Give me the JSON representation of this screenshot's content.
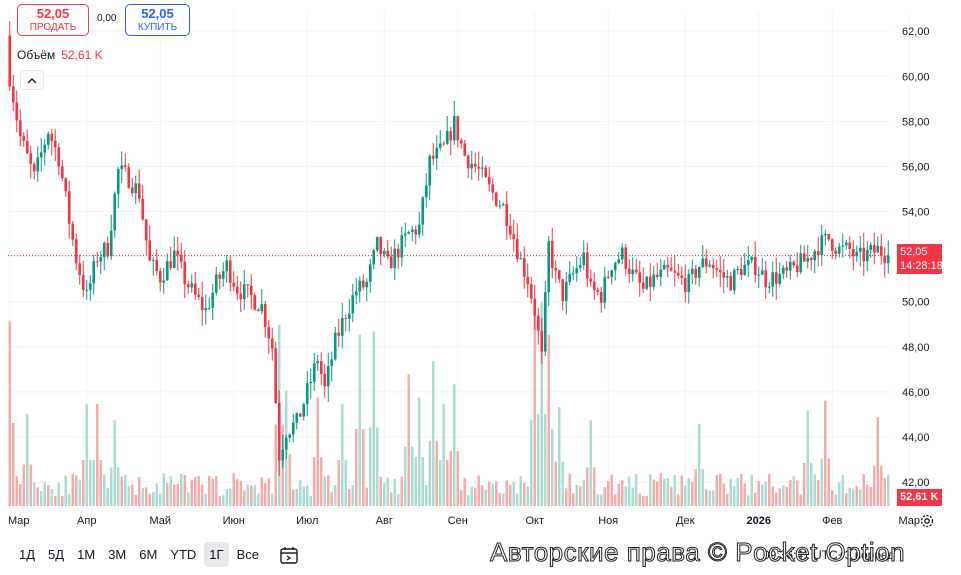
{
  "trade": {
    "sell_price": "52,05",
    "sell_label": "ПРОДАТЬ",
    "spread": "0,00",
    "buy_price": "52,05",
    "buy_label": "КУПИТЬ"
  },
  "volume_legend": {
    "label": "Объём",
    "value": "52,61 K"
  },
  "price_tag": {
    "price": "52,05",
    "countdown": "14:28:18"
  },
  "volume_tag": "52,61 K",
  "timeframes": [
    "1Д",
    "5Д",
    "1М",
    "3М",
    "6М",
    "YTD",
    "1Г",
    "Все"
  ],
  "active_timeframe": "1Г",
  "clock_text": "09:36:41 UTC+3",
  "footer_right": "ворред",
  "watermark": "Авторские права © Pocket Option",
  "colors": {
    "up": "#089981",
    "down": "#f23645",
    "up_volume": "#a8dcd1",
    "down_volume": "#f7a9a8"
  },
  "icons": [
    "chevron-up-icon",
    "date-range-icon",
    "settings-icon"
  ],
  "chart_data": {
    "type": "candlestick",
    "y_ticks": [
      "62,00",
      "60,00",
      "58,00",
      "56,00",
      "54,00",
      "52,00",
      "50,00",
      "48,00",
      "46,00",
      "44,00",
      "42,00"
    ],
    "y_tick_values": [
      62,
      60,
      58,
      56,
      54,
      52,
      50,
      48,
      46,
      44,
      42
    ],
    "ylim": [
      40.85,
      62.85
    ],
    "x_ticks": [
      "Мар",
      "Апр",
      "Май",
      "Июн",
      "Июл",
      "Авг",
      "Сен",
      "Окт",
      "Ноя",
      "Дек",
      "2026",
      "Фев",
      "Мар"
    ],
    "x_tick_positions": [
      0,
      22,
      43,
      64,
      85,
      107,
      128,
      150,
      171,
      193,
      214,
      235,
      257
    ],
    "last_price": 52.05,
    "price_anchors": [
      [
        0,
        60.0
      ],
      [
        3,
        57.3
      ],
      [
        7,
        55.5
      ],
      [
        11,
        57.6
      ],
      [
        14,
        56.4
      ],
      [
        17,
        53.6
      ],
      [
        19,
        51.9
      ],
      [
        22,
        50.2
      ],
      [
        25,
        52.0
      ],
      [
        28,
        52.4
      ],
      [
        31,
        55.8
      ],
      [
        34,
        55.5
      ],
      [
        37,
        54.8
      ],
      [
        40,
        51.7
      ],
      [
        43,
        51.1
      ],
      [
        47,
        52.1
      ],
      [
        50,
        51.0
      ],
      [
        53,
        50.2
      ],
      [
        56,
        49.6
      ],
      [
        59,
        50.8
      ],
      [
        62,
        51.6
      ],
      [
        65,
        50.6
      ],
      [
        69,
        50.2
      ],
      [
        72,
        49.8
      ],
      [
        75,
        48.0
      ],
      [
        77,
        43.2
      ],
      [
        79,
        44.3
      ],
      [
        82,
        44.6
      ],
      [
        85,
        46.0
      ],
      [
        88,
        47.5
      ],
      [
        90,
        46.1
      ],
      [
        93,
        48.2
      ],
      [
        96,
        49.5
      ],
      [
        99,
        50.5
      ],
      [
        102,
        50.8
      ],
      [
        105,
        52.5
      ],
      [
        108,
        51.6
      ],
      [
        111,
        52.3
      ],
      [
        114,
        53.0
      ],
      [
        117,
        53.3
      ],
      [
        120,
        56.2
      ],
      [
        124,
        56.8
      ],
      [
        127,
        57.9
      ],
      [
        130,
        56.5
      ],
      [
        134,
        55.8
      ],
      [
        137,
        55.0
      ],
      [
        141,
        54.2
      ],
      [
        143,
        53.4
      ],
      [
        146,
        51.8
      ],
      [
        148,
        51.0
      ],
      [
        150,
        49.6
      ],
      [
        152,
        47.5
      ],
      [
        154,
        52.5
      ],
      [
        156,
        51.1
      ],
      [
        158,
        50.3
      ],
      [
        161,
        51.2
      ],
      [
        164,
        52.0
      ],
      [
        166,
        50.5
      ],
      [
        169,
        50.3
      ],
      [
        172,
        51.7
      ],
      [
        175,
        52.1
      ],
      [
        178,
        51.2
      ],
      [
        181,
        50.5
      ],
      [
        184,
        51.0
      ],
      [
        188,
        51.3
      ],
      [
        191,
        51.0
      ],
      [
        194,
        50.8
      ],
      [
        197,
        51.6
      ],
      [
        200,
        51.8
      ],
      [
        203,
        51.2
      ],
      [
        206,
        50.9
      ],
      [
        209,
        51.5
      ],
      [
        213,
        51.6
      ],
      [
        216,
        51.0
      ],
      [
        219,
        51.1
      ],
      [
        222,
        51.2
      ],
      [
        225,
        51.6
      ],
      [
        228,
        51.9
      ],
      [
        231,
        52.5
      ],
      [
        234,
        52.8
      ],
      [
        237,
        52.3
      ],
      [
        240,
        52.3
      ],
      [
        242,
        51.9
      ],
      [
        245,
        52.1
      ],
      [
        248,
        52.3
      ],
      [
        251,
        52.05
      ]
    ],
    "volume_peaks": [
      [
        0,
        56000
      ],
      [
        5,
        28000
      ],
      [
        22,
        31000
      ],
      [
        25,
        31000
      ],
      [
        30,
        26000
      ],
      [
        77,
        55000
      ],
      [
        79,
        35000
      ],
      [
        88,
        33000
      ],
      [
        95,
        31000
      ],
      [
        100,
        52000
      ],
      [
        104,
        53000
      ],
      [
        114,
        40000
      ],
      [
        117,
        33000
      ],
      [
        121,
        44000
      ],
      [
        124,
        31000
      ],
      [
        127,
        37000
      ],
      [
        150,
        58000
      ],
      [
        152,
        62000
      ],
      [
        154,
        52000
      ],
      [
        157,
        30000
      ],
      [
        166,
        26000
      ],
      [
        197,
        25000
      ],
      [
        228,
        29000
      ],
      [
        233,
        32000
      ],
      [
        248,
        27000
      ]
    ],
    "volume_range": [
      0,
      150000
    ],
    "last_volume": 52610
  }
}
